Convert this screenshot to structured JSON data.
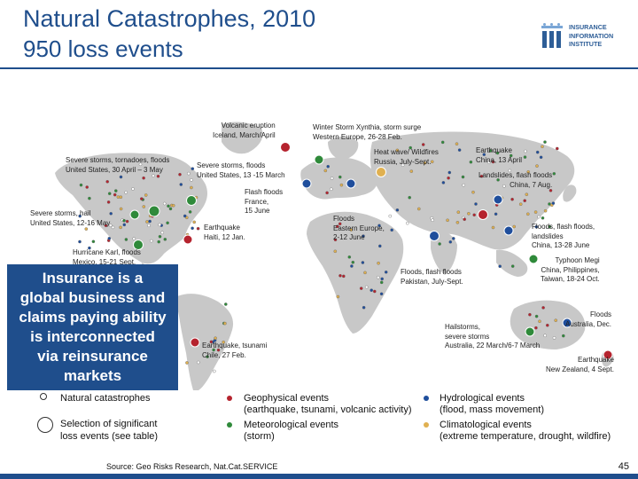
{
  "header": {
    "title": "Natural Catastrophes, 2010",
    "subtitle": "950 loss events"
  },
  "logo": {
    "line1": "INSURANCE",
    "line2": "INFORMATION",
    "line3": "INSTITUTE",
    "color": "#2e5e97"
  },
  "colors": {
    "brand": "#1f4e8c",
    "geophysical": "#b5232e",
    "meteorological": "#2f8a3a",
    "hydrological": "#1f4e9c",
    "climatological": "#e0b050",
    "land": "#c8c8c8"
  },
  "map": {
    "annotations": {
      "volcanic": "Volcanic eruption\nIceland, March/April",
      "xynthia": "Winter Storm Xynthia, storm surge\nWestern Europe, 26-28 Feb.",
      "heatwave": "Heat wave/ Wildfires\nRussia, July-Sept.",
      "quake_china": "Earthquake\nChina, 13 April",
      "storms_us1": "Severe storms, tornadoes, floods\nUnited States, 30 April – 3 May",
      "storms_us2": "Severe storms, floods\nUnited States, 13 -15 March",
      "landslides_china": "Landslides, flash floods\nChina, 7 Aug.",
      "flash_france": "Flash floods\nFrance,\n15 June",
      "hail_us": "Severe storms, hail\nUnited States, 12-16 May",
      "quake_haiti": "Earthquake\nHaiti, 12 Jan.",
      "floods_eeurope": "Floods\nEastern Europe,\n2-12 June",
      "floods_china": "Floods, flash floods,\nlandslides\nChina, 13-28 June",
      "karl": "Hurricane Karl, floods\nMexico, 15-21 Sept.",
      "megi": "Typhoon Megi\nChina, Philippines,\nTaiwan, 18-24 Oct.",
      "pakistan": "Floods, flash floods\nPakistan, July-Sept.",
      "floods_aus": "Floods\nAustralia, Dec.",
      "hail_aus": "Hailstorms,\nsevere storms\nAustralia, 22 March/6-7 March",
      "quake_chile": "Earthquake, tsunami\nChile, 27 Feb.",
      "quake_nz": "Earthquake\nNew Zealand, 4 Sept."
    },
    "significant_events": [
      {
        "name": "volcanic",
        "type": "geophysical"
      },
      {
        "name": "xynthia",
        "type": "meteorological"
      },
      {
        "name": "heatwave",
        "type": "climatological"
      },
      {
        "name": "quake_china",
        "type": "geophysical"
      },
      {
        "name": "storms_us1",
        "type": "meteorological"
      },
      {
        "name": "storms_us2",
        "type": "meteorological"
      },
      {
        "name": "landslides_china",
        "type": "hydrological"
      },
      {
        "name": "flash_france",
        "type": "hydrological"
      },
      {
        "name": "hail_us",
        "type": "meteorological"
      },
      {
        "name": "quake_haiti",
        "type": "geophysical"
      },
      {
        "name": "floods_eeurope",
        "type": "hydrological"
      },
      {
        "name": "floods_china",
        "type": "hydrological"
      },
      {
        "name": "karl",
        "type": "meteorological"
      },
      {
        "name": "megi",
        "type": "meteorological"
      },
      {
        "name": "pakistan",
        "type": "hydrological"
      },
      {
        "name": "floods_aus",
        "type": "hydrological"
      },
      {
        "name": "hail_aus",
        "type": "meteorological"
      },
      {
        "name": "quake_chile",
        "type": "geophysical"
      },
      {
        "name": "quake_nz",
        "type": "geophysical"
      }
    ]
  },
  "callout": "Insurance is a\nglobal business and\nclaims paying ability\nis interconnected\nvia reinsurance\nmarkets",
  "legend": {
    "natural": "Natural catastrophes",
    "significant": "Selection of significant\nloss events (see table)",
    "geo_title": "Geophysical events",
    "geo_desc": "(earthquake, tsunami, volcanic activity)",
    "met_title": "Meteorological events",
    "met_desc": "(storm)",
    "hyd_title": "Hydrological events",
    "hyd_desc": "(flood, mass movement)",
    "cli_title": "Climatological events",
    "cli_desc": "(extreme temperature, drought, wildfire)"
  },
  "footer": {
    "source": "Source: Geo Risks Research, Nat.Cat.SERVICE",
    "page": "45"
  }
}
